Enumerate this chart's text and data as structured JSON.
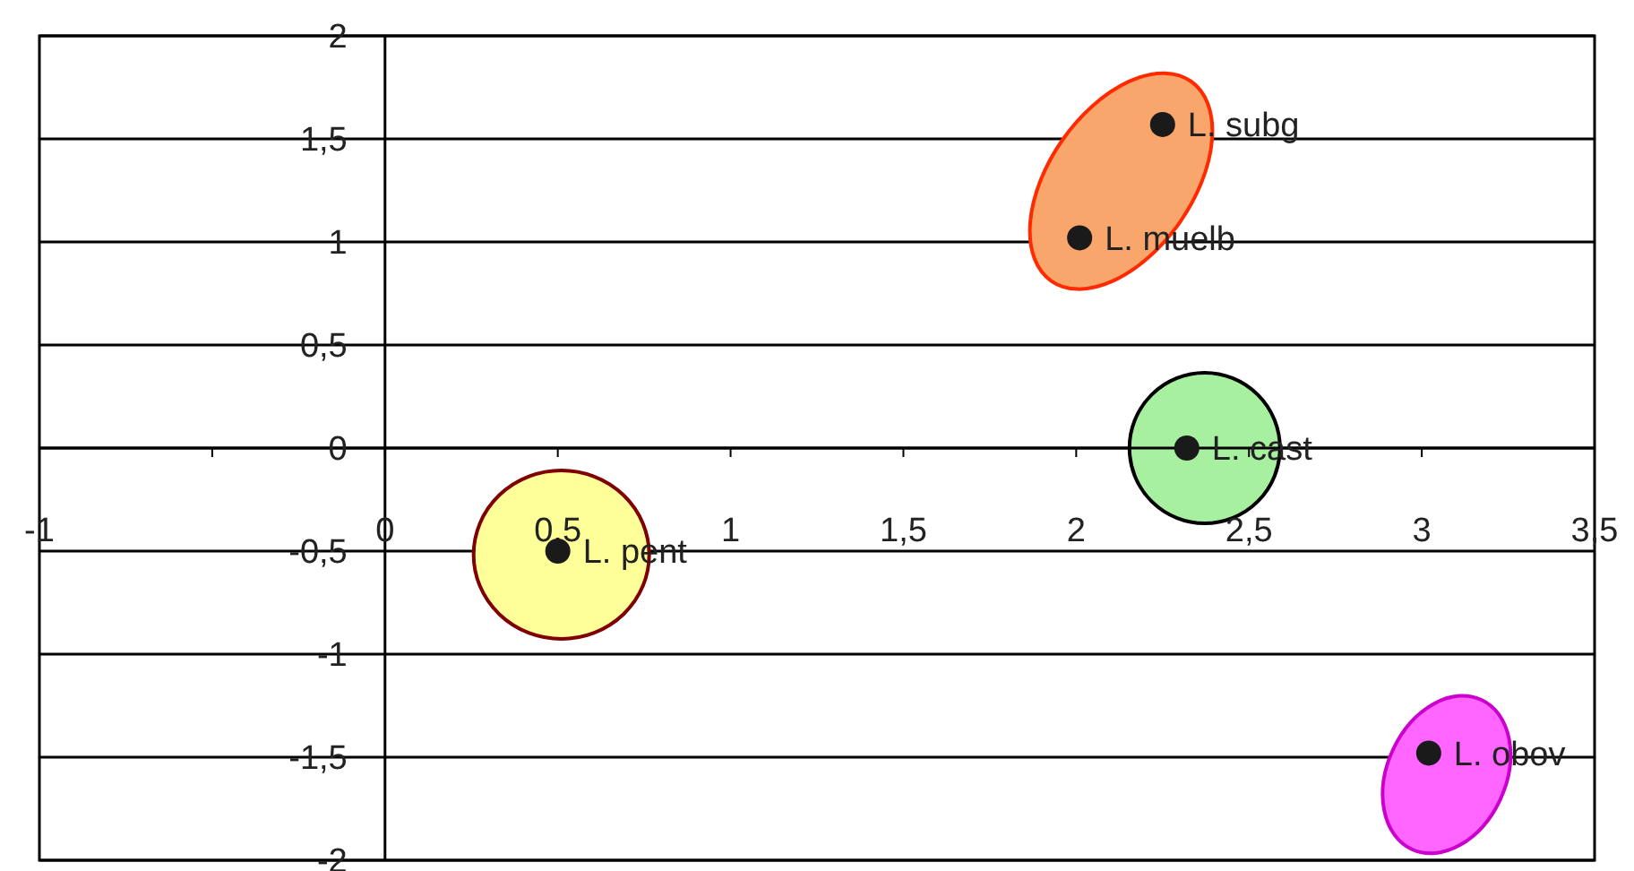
{
  "chart_data": {
    "type": "scatter",
    "x": [
      2.25,
      2.01,
      2.32,
      0.5,
      3.02
    ],
    "series": [
      {
        "color": "#1a1a1a",
        "values": [
          1.57,
          1.02,
          0,
          -0.5,
          -1.48
        ]
      }
    ],
    "annotations": [
      {
        "text": "L. subg",
        "x": 2.25,
        "y": 1.57
      },
      {
        "text": "L. muelb",
        "x": 2.01,
        "y": 1.02
      },
      {
        "text": "L. cast",
        "x": 2.32,
        "y": 0
      },
      {
        "text": "L. pent",
        "x": 0.5,
        "y": -0.5
      },
      {
        "text": "L. obov",
        "x": 3.02,
        "y": -1.48
      }
    ],
    "xlim": [
      -1,
      3.5
    ],
    "xticks": [
      -1,
      {
        "value": -0.5,
        "label": null
      },
      0,
      {
        "value": 0.5,
        "label": "0,5"
      },
      1,
      {
        "value": 1.5,
        "label": "1,5"
      },
      2,
      {
        "value": 2.5,
        "label": "2,5"
      },
      3,
      {
        "value": 3.5,
        "label": "3,5"
      }
    ],
    "ylim": [
      -2,
      2
    ],
    "yticks": [
      -2,
      {
        "value": -1.5,
        "label": "-1,5"
      },
      -1,
      {
        "value": -0.5,
        "label": "-0,5"
      },
      0,
      {
        "value": 0.5,
        "label": "0,5"
      },
      1,
      {
        "value": 1.5,
        "label": "1,5"
      },
      2
    ],
    "grid": "y",
    "marker": "circle"
  }
}
